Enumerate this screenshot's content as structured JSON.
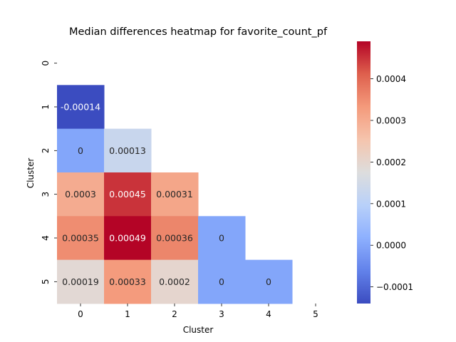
{
  "chart_data": {
    "type": "heatmap",
    "title": "Median differences heatmap for favorite_count_pf",
    "xlabel": "Cluster",
    "ylabel": "Cluster",
    "x_categories": [
      "0",
      "1",
      "2",
      "3",
      "4",
      "5"
    ],
    "y_categories": [
      "0",
      "1",
      "2",
      "3",
      "4",
      "5"
    ],
    "mask": "upper-triangle-including-diagonal",
    "cells": [
      {
        "row": 1,
        "col": 0,
        "value": -0.00014,
        "label": "-0.00014"
      },
      {
        "row": 2,
        "col": 0,
        "value": 0,
        "label": "0"
      },
      {
        "row": 2,
        "col": 1,
        "value": 0.00013,
        "label": "0.00013"
      },
      {
        "row": 3,
        "col": 0,
        "value": 0.0003,
        "label": "0.0003"
      },
      {
        "row": 3,
        "col": 1,
        "value": 0.00045,
        "label": "0.00045"
      },
      {
        "row": 3,
        "col": 2,
        "value": 0.00031,
        "label": "0.00031"
      },
      {
        "row": 4,
        "col": 0,
        "value": 0.00035,
        "label": "0.00035"
      },
      {
        "row": 4,
        "col": 1,
        "value": 0.00049,
        "label": "0.00049"
      },
      {
        "row": 4,
        "col": 2,
        "value": 0.00036,
        "label": "0.00036"
      },
      {
        "row": 4,
        "col": 3,
        "value": 0,
        "label": "0"
      },
      {
        "row": 5,
        "col": 0,
        "value": 0.00019,
        "label": "0.00019"
      },
      {
        "row": 5,
        "col": 1,
        "value": 0.00033,
        "label": "0.00033"
      },
      {
        "row": 5,
        "col": 2,
        "value": 0.0002,
        "label": "0.0002"
      },
      {
        "row": 5,
        "col": 3,
        "value": 0,
        "label": "0"
      },
      {
        "row": 5,
        "col": 4,
        "value": 0,
        "label": "0"
      }
    ],
    "colormap": "coolwarm",
    "colorbar": {
      "min": -0.00014,
      "max": 0.00049,
      "ticks": [
        -0.0001,
        0.0,
        0.0001,
        0.0002,
        0.0003,
        0.0004
      ],
      "tick_labels": [
        "−0.0001",
        "0.0000",
        "0.0001",
        "0.0002",
        "0.0003",
        "0.0004"
      ]
    },
    "grid": false,
    "legend": "colorbar-right"
  }
}
